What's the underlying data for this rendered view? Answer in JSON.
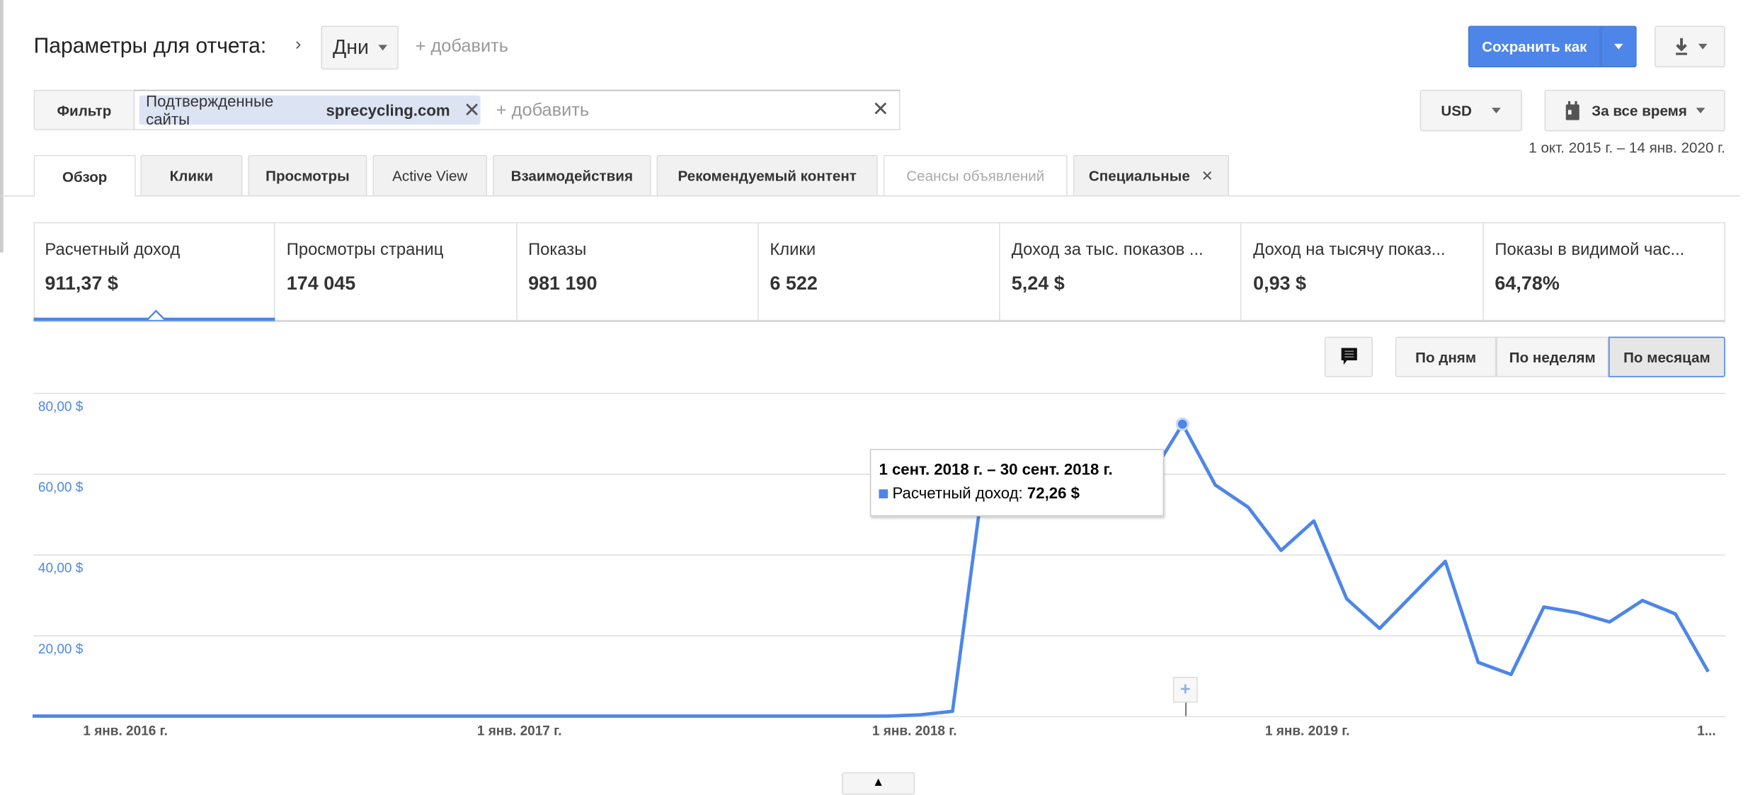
{
  "header": {
    "title": "Параметры для отчета:",
    "dimension": "Дни",
    "add_label": "+ добавить",
    "save_label": "Сохранить как"
  },
  "filter": {
    "label": "Фильтр",
    "chip_prefix": "Подтвержденные сайты",
    "chip_value": "sprecycling.com",
    "add_label": "+ добавить"
  },
  "currency": "USD",
  "date_range": {
    "label": "За все время",
    "text": "1 окт. 2015 г. – 14 янв. 2020 г."
  },
  "tabs": [
    {
      "label": "Обзор",
      "active": true
    },
    {
      "label": "Клики"
    },
    {
      "label": "Просмотры"
    },
    {
      "label": "Active View"
    },
    {
      "label": "Взаимодействия"
    },
    {
      "label": "Рекомендуемый контент"
    },
    {
      "label": "Сеансы объявлений",
      "disabled": true
    },
    {
      "label": "Специальные",
      "closable": true
    }
  ],
  "metrics": [
    {
      "label": "Расчетный доход",
      "value": "911,37 $",
      "active": true
    },
    {
      "label": "Просмотры страниц",
      "value": "174 045"
    },
    {
      "label": "Показы",
      "value": "981 190"
    },
    {
      "label": "Клики",
      "value": "6 522"
    },
    {
      "label": "Доход за тыс. показов ...",
      "value": "5,24 $"
    },
    {
      "label": "Доход на тысячу показ...",
      "value": "0,93 $"
    },
    {
      "label": "Показы в видимой час...",
      "value": "64,78%"
    }
  ],
  "granularity": {
    "options": [
      "По дням",
      "По неделям",
      "По месяцам"
    ],
    "selected": "По месяцам"
  },
  "colors": {
    "accent": "#4d86e8",
    "chip": "#dce4f4"
  },
  "tooltip": {
    "period": "1 сент. 2018 г. – 30 сент. 2018 г.",
    "series": "Расчетный доход:",
    "value": "72,26 $"
  },
  "chart_data": {
    "type": "line",
    "ylim": [
      0,
      80
    ],
    "y_ticks": [
      "80,00 $",
      "60,00 $",
      "40,00 $",
      "20,00 $"
    ],
    "x_ticks": [
      "1 янв. 2016 г.",
      "1 янв. 2017 г.",
      "1 янв. 2018 г.",
      "1 янв. 2019 г.",
      "1..."
    ],
    "grid": true,
    "series": [
      {
        "color": "#4d86e8",
        "x_start": "2015-10",
        "x_end": "2020-01",
        "interval": "month",
        "values": [
          0,
          0,
          0,
          0,
          0,
          0,
          0,
          0,
          0,
          0,
          0,
          0,
          0,
          0,
          0,
          0,
          0,
          0,
          0,
          0,
          0,
          0,
          0,
          0,
          0,
          0,
          0,
          0.3,
          1.2,
          62,
          58,
          60,
          57,
          60,
          59,
          72.26,
          57.2,
          51.7,
          41,
          48.3,
          29,
          21.7,
          30,
          38.3,
          13.3,
          10.3,
          27,
          25.6,
          23.3,
          28.6,
          25.3,
          11
        ]
      }
    ],
    "highlighted": "2018-09"
  }
}
